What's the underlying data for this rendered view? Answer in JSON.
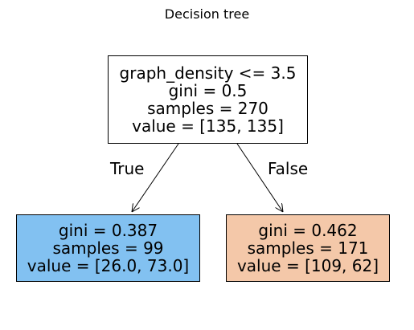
{
  "title": "Decision tree",
  "nodes": {
    "root": {
      "split": "graph_density <= 3.5",
      "gini": "gini = 0.5",
      "samples": "samples = 270",
      "value": "value = [135, 135]"
    },
    "left": {
      "gini": "gini = 0.387",
      "samples": "samples = 99",
      "value": "value = [26.0, 73.0]",
      "color": "#82c1f1"
    },
    "right": {
      "gini": "gini = 0.462",
      "samples": "samples = 171",
      "value": "value = [109, 62]",
      "color": "#f4c8a9"
    }
  },
  "edges": {
    "true_label": "True",
    "false_label": "False"
  }
}
